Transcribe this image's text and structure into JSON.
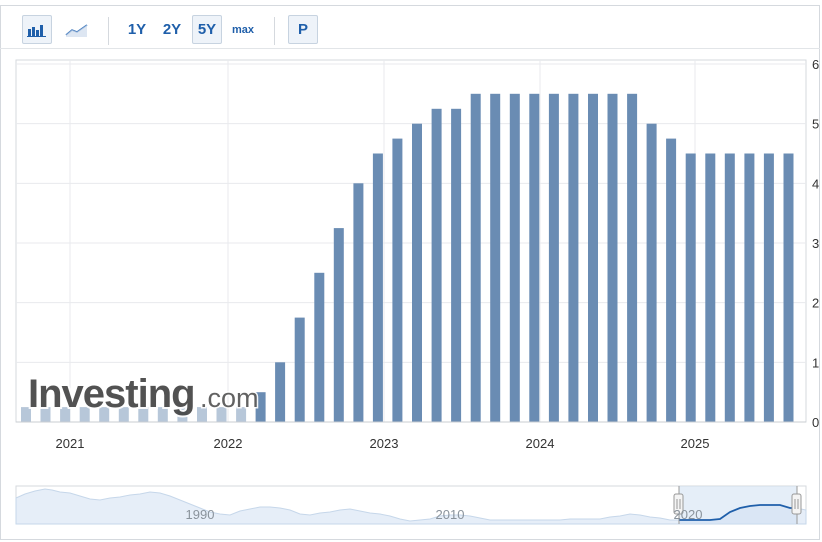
{
  "toolbar": {
    "bar_chart_label": "bar-chart-icon",
    "line_chart_label": "line-chart-icon",
    "range_1y": "1Y",
    "range_2y": "2Y",
    "range_5y": "5Y",
    "range_max": "max",
    "period_button": "P",
    "active_range": "5Y"
  },
  "watermark": {
    "brand": "Investing",
    "suffix": ".com"
  },
  "colors": {
    "bar": "#6a8cb3",
    "bar_light": "#b7c7d9",
    "accent": "#1f5faa",
    "grid": "#e8eaed"
  },
  "chart_data": {
    "type": "bar",
    "ylim": [
      0,
      6
    ],
    "yticks": [
      "0",
      "1",
      "2",
      "3",
      "4",
      "5",
      "6"
    ],
    "xticks": [
      "2021",
      "2022",
      "2023",
      "2024",
      "2025"
    ],
    "values": [
      0.25,
      0.25,
      0.25,
      0.25,
      0.25,
      0.25,
      0.25,
      0.25,
      0.25,
      0.25,
      0.25,
      0.25,
      0.5,
      1.0,
      1.75,
      2.5,
      3.25,
      4.0,
      4.5,
      4.75,
      5.0,
      5.25,
      5.25,
      5.5,
      5.5,
      5.5,
      5.5,
      5.5,
      5.5,
      5.5,
      5.5,
      5.5,
      5.0,
      4.75,
      4.5,
      4.5,
      4.5,
      4.5,
      4.5,
      4.5
    ],
    "grid": true,
    "legend": "none"
  },
  "navigator": {
    "labels": [
      "1990",
      "2010",
      "2020"
    ]
  }
}
